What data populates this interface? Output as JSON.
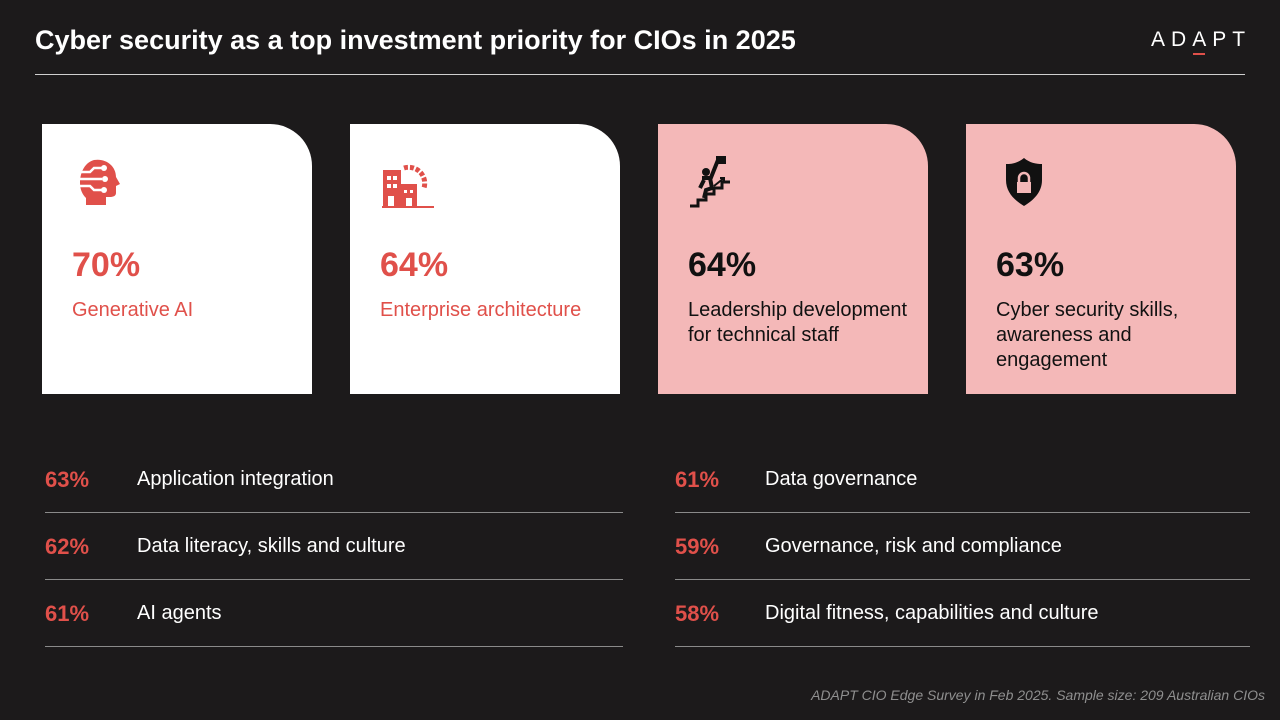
{
  "title": "Cyber security as a top investment priority for CIOs in 2025",
  "logo": {
    "text": "ADAPT"
  },
  "cards": [
    {
      "pct": "70%",
      "label": "Generative AI",
      "icon": "ai-head-icon"
    },
    {
      "pct": "64%",
      "label": "Enterprise architecture",
      "icon": "building-gear-icon"
    },
    {
      "pct": "64%",
      "label": "Leadership development for technical staff",
      "icon": "climber-flag-icon"
    },
    {
      "pct": "63%",
      "label": "Cyber security skills, awareness and engagement",
      "icon": "shield-lock-icon"
    }
  ],
  "left_list": [
    {
      "pct": "63%",
      "label": "Application integration"
    },
    {
      "pct": "62%",
      "label": "Data literacy, skills and culture"
    },
    {
      "pct": "61%",
      "label": "AI agents"
    }
  ],
  "right_list": [
    {
      "pct": "61%",
      "label": "Data governance"
    },
    {
      "pct": "59%",
      "label": "Governance, risk and compliance"
    },
    {
      "pct": "58%",
      "label": "Digital fitness, capabilities and culture"
    }
  ],
  "footer": "ADAPT CIO Edge Survey in Feb 2025. Sample size: 209 Australian CIOs",
  "colors": {
    "accent": "#e0504a",
    "pink": "#f4b8b8",
    "background": "#1c1a1b"
  }
}
